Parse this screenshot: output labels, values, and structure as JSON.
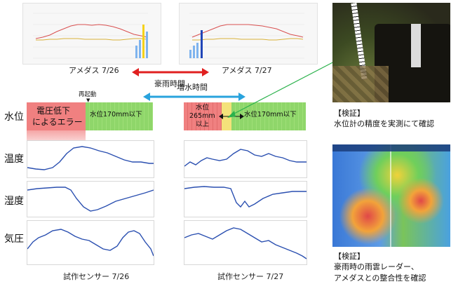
{
  "amedas": {
    "left_caption": "アメダス 7/26",
    "right_caption": "アメダス 7/27",
    "heavy_rain_label": "豪雨時間"
  },
  "sensor": {
    "rise_label": "増水時間",
    "left_caption": "試作センサー 7/26",
    "right_caption": "試作センサー 7/27",
    "restart_label": "再起動",
    "rows": {
      "water": "水位",
      "temperature": "温度",
      "humidity": "湿度",
      "pressure": "気圧"
    },
    "left_water": {
      "error_text_1": "電圧低下",
      "error_text_2": "によるエラー",
      "normal_text": "水位170mm以下"
    },
    "right_water": {
      "high_text_1": "水位",
      "high_text_2": "265mm",
      "high_text_3": "以上",
      "normal_text": "水位170mm以下"
    }
  },
  "verify": {
    "top_title": "【検証】",
    "top_text": "水位計の精度を実測にて確認",
    "bottom_title": "【検証】",
    "bottom_text_1": "豪雨時の雨雲レーダー、",
    "bottom_text_2": "アメダスとの整合性を確認"
  },
  "colors": {
    "red_arrow": "#e02020",
    "blue_arrow": "#29a3dd",
    "green_arrow": "#2bb24c",
    "error_red": "#f08080",
    "normal_green": "#8fd66a",
    "line_blue": "#2a4fb0"
  }
}
